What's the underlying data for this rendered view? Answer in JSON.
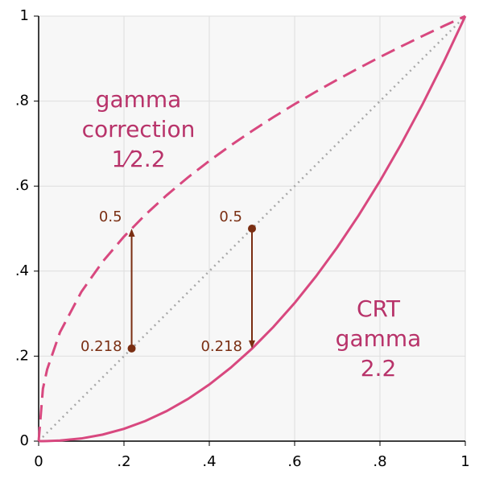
{
  "chart_data": {
    "type": "line",
    "x": [
      0,
      0.01,
      0.02,
      0.05,
      0.1,
      0.15,
      0.2,
      0.25,
      0.3,
      0.35,
      0.4,
      0.45,
      0.5,
      0.55,
      0.6,
      0.65,
      0.7,
      0.75,
      0.8,
      0.85,
      0.9,
      0.95,
      1
    ],
    "series": [
      {
        "color": "#d8487f",
        "style": "dashed",
        "values": [
          0,
          0.1233,
          0.169,
          0.2562,
          0.3511,
          0.4222,
          0.4812,
          0.5326,
          0.5785,
          0.6205,
          0.6594,
          0.6956,
          0.7297,
          0.7621,
          0.7928,
          0.8222,
          0.8504,
          0.8774,
          0.9036,
          0.9288,
          0.9532,
          0.977,
          1
        ]
      },
      {
        "color": "#d8487f",
        "style": "solid",
        "values": [
          0,
          0,
          0.0002,
          0.0014,
          0.0063,
          0.0154,
          0.029,
          0.0474,
          0.0707,
          0.0993,
          0.1332,
          0.1726,
          0.2176,
          0.2684,
          0.325,
          0.3876,
          0.4562,
          0.5311,
          0.6121,
          0.6994,
          0.793,
          0.8933,
          1
        ]
      },
      {
        "color": "#a8a8a8",
        "style": "dotted",
        "values": [
          0,
          0.01,
          0.02,
          0.05,
          0.1,
          0.15,
          0.2,
          0.25,
          0.3,
          0.35,
          0.4,
          0.45,
          0.5,
          0.55,
          0.6,
          0.65,
          0.7,
          0.75,
          0.8,
          0.85,
          0.9,
          0.95,
          1
        ]
      }
    ],
    "xlim": [
      0,
      1
    ],
    "ylim": [
      0,
      1
    ],
    "xticks": [
      0,
      {
        "value": 0.2,
        "label": ".2"
      },
      {
        "value": 0.4,
        "label": ".4"
      },
      {
        "value": 0.6,
        "label": ".6"
      },
      {
        "value": 0.8,
        "label": ".8"
      },
      1
    ],
    "yticks": [
      0,
      {
        "value": 0.2,
        "label": ".2"
      },
      {
        "value": 0.4,
        "label": ".4"
      },
      {
        "value": 0.6,
        "label": ".6"
      },
      {
        "value": 0.8,
        "label": ".8"
      },
      1
    ],
    "grid": true,
    "arrows": [
      {
        "x": 0.218,
        "from": 0.218,
        "to": 0.5,
        "from_label": "0.218",
        "to_label": "0.5",
        "color": "#7a2e12"
      },
      {
        "x": 0.5,
        "from": 0.5,
        "to": 0.218,
        "from_label": "0.5",
        "to_label": "0.218",
        "color": "#7a2e12"
      }
    ],
    "annotations": [
      {
        "lines": [
          "gamma",
          "correction",
          "1⁄2.2"
        ],
        "color": "#b8336a"
      },
      {
        "lines": [
          "CRT",
          "gamma",
          "2.2"
        ],
        "color": "#b8336a"
      }
    ]
  }
}
